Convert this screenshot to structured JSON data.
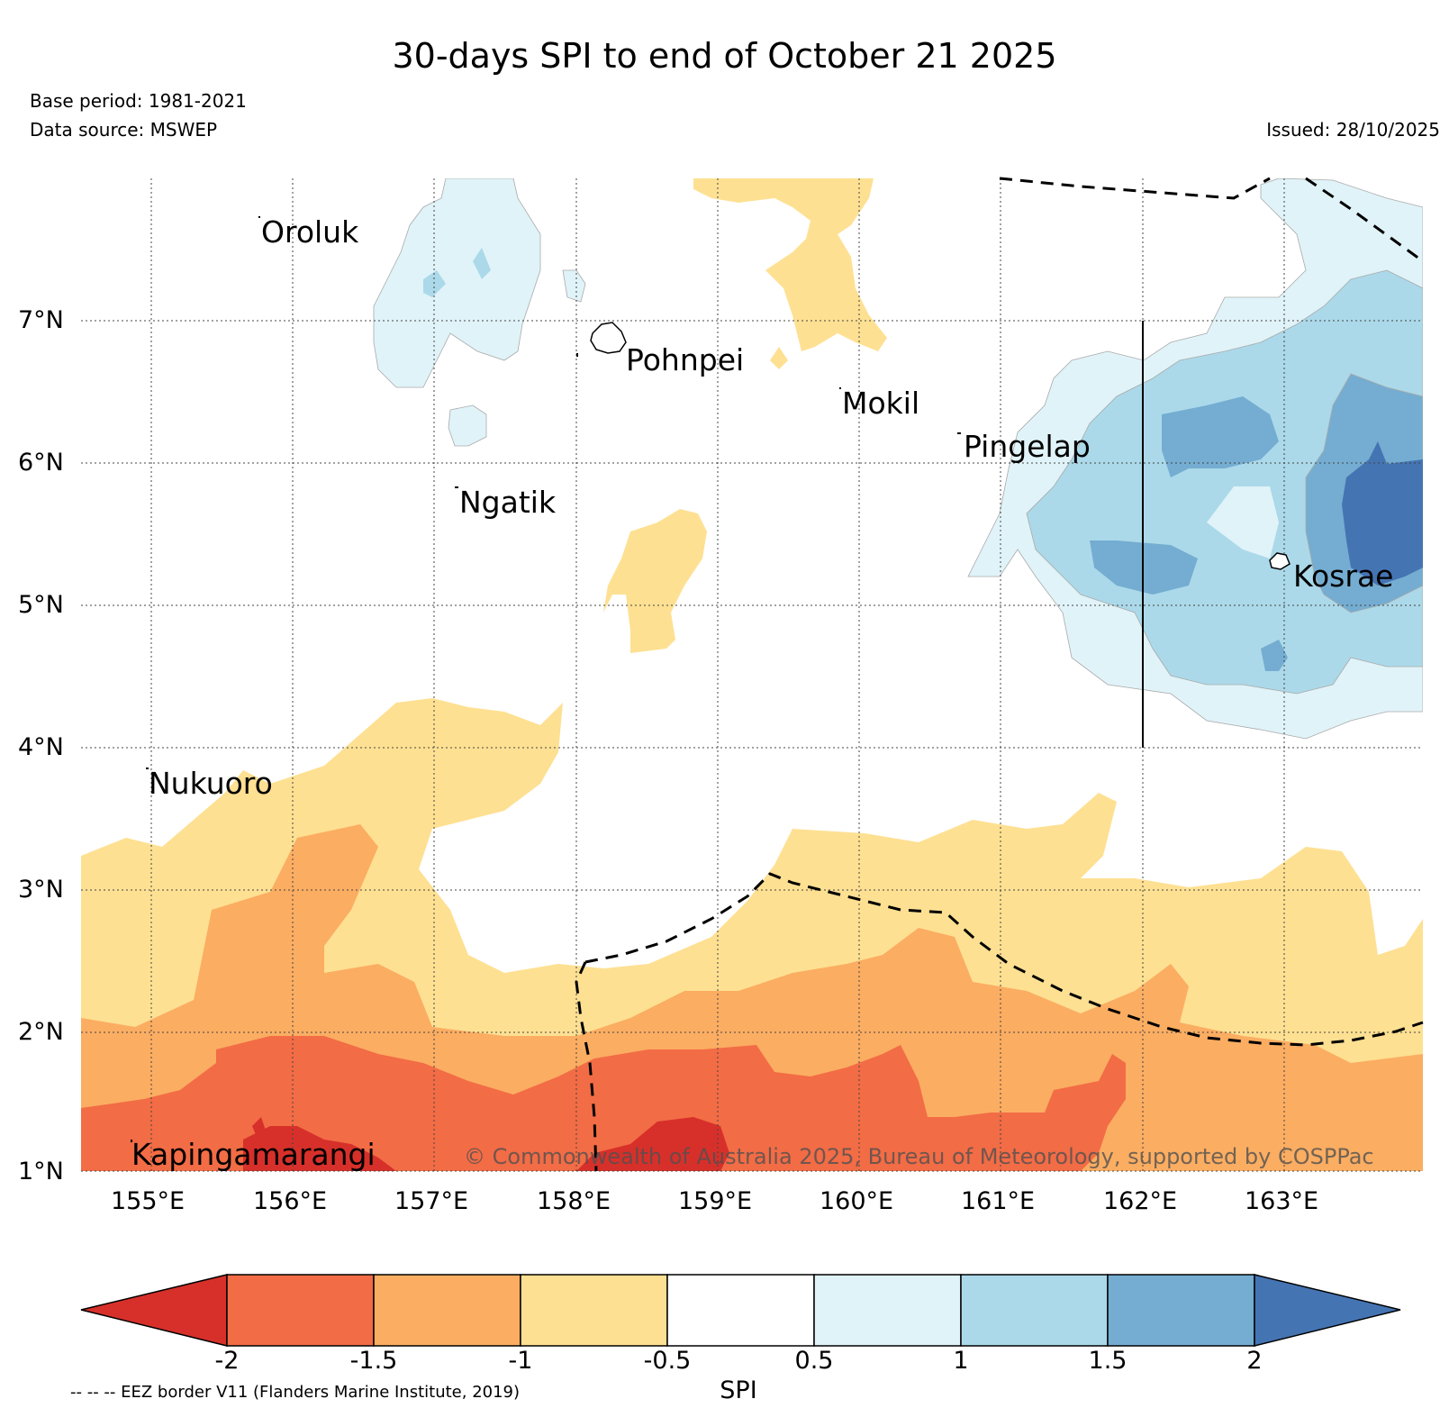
{
  "title": "30-days SPI to end of October 21 2025",
  "base_period": "Base period: 1981-2021",
  "data_source": "Data source: MSWEP",
  "issued": "Issued: 28/10/2025",
  "copyright": "© Commonwealth of Australia 2025, Bureau of Meteorology, supported by COSPPac",
  "eez_note": "-- -- -- EEZ border V11 (Flanders Marine Institute, 2019)",
  "colorbar": {
    "label": "SPI",
    "ticks": [
      "-2",
      "-1.5",
      "-1",
      "-0.5",
      "0.5",
      "1",
      "1.5",
      "2"
    ],
    "colors": [
      "#d7302a",
      "#f26c45",
      "#fbad62",
      "#fee092",
      "#ffffff",
      "#e0f3f8",
      "#abd9e9",
      "#74add1",
      "#4574b3"
    ]
  },
  "axes": {
    "lon_labels": [
      "155°E",
      "156°E",
      "157°E",
      "158°E",
      "159°E",
      "160°E",
      "161°E",
      "162°E",
      "163°E"
    ],
    "lat_labels": [
      "7°N",
      "6°N",
      "5°N",
      "4°N",
      "3°N",
      "2°N",
      "1°N"
    ]
  },
  "places": {
    "oroluk": "Oroluk",
    "pohnpei": "Pohnpei",
    "mokil": "Mokil",
    "pingelap": "Pingelap",
    "ngatik": "Ngatik",
    "kosrae": "Kosrae",
    "nukuoro": "Nukuoro",
    "kapingamarangi": "Kapingamarangi"
  }
}
